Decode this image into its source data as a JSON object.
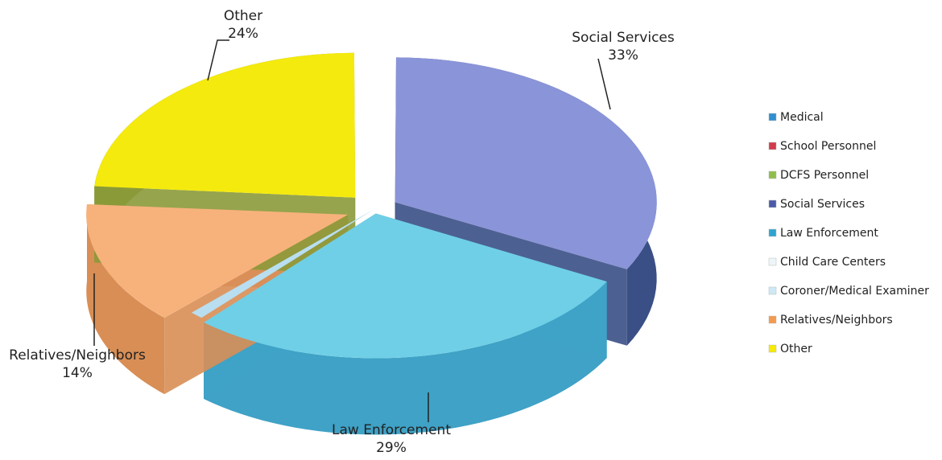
{
  "chart_data": {
    "type": "pie",
    "three_d": true,
    "exploded": true,
    "title": "",
    "slices": [
      {
        "name": "Social Services",
        "value": 33,
        "label": "33%",
        "color": "#8a94d8",
        "side_color": "#3a4f86"
      },
      {
        "name": "Law Enforcement",
        "value": 29,
        "label": "29%",
        "color": "#6fcfe6",
        "side_color": "#3fa2c6"
      },
      {
        "name": "Coroner/Medical Examiner",
        "value": 0,
        "label": "",
        "color": "#b8def0",
        "side_color": "#86b3cf"
      },
      {
        "name": "Relatives/Neighbors",
        "value": 14,
        "label": "14%",
        "color": "#f7b27c",
        "side_color": "#d88e55"
      },
      {
        "name": "Other",
        "value": 24,
        "label": "24%",
        "color": "#f4ea0e",
        "side_color": "#8b9a3a"
      }
    ],
    "legend": {
      "position": "right",
      "items": [
        {
          "name": "Medical",
          "color": "#2f8fd1"
        },
        {
          "name": "School Personnel",
          "color": "#d23b4c"
        },
        {
          "name": "DCFS Personnel",
          "color": "#8fbf4a"
        },
        {
          "name": "Social Services",
          "color": "#4a5aa8"
        },
        {
          "name": "Law Enforcement",
          "color": "#2fa4cf"
        },
        {
          "name": "Child Care Centers",
          "color": "#ecf6f8"
        },
        {
          "name": "Coroner/Medical Examiner",
          "color": "#cde9f5"
        },
        {
          "name": "Relatives/Neighbors",
          "color": "#f39a4f"
        },
        {
          "name": "Other",
          "color": "#f6ea08"
        }
      ]
    }
  }
}
